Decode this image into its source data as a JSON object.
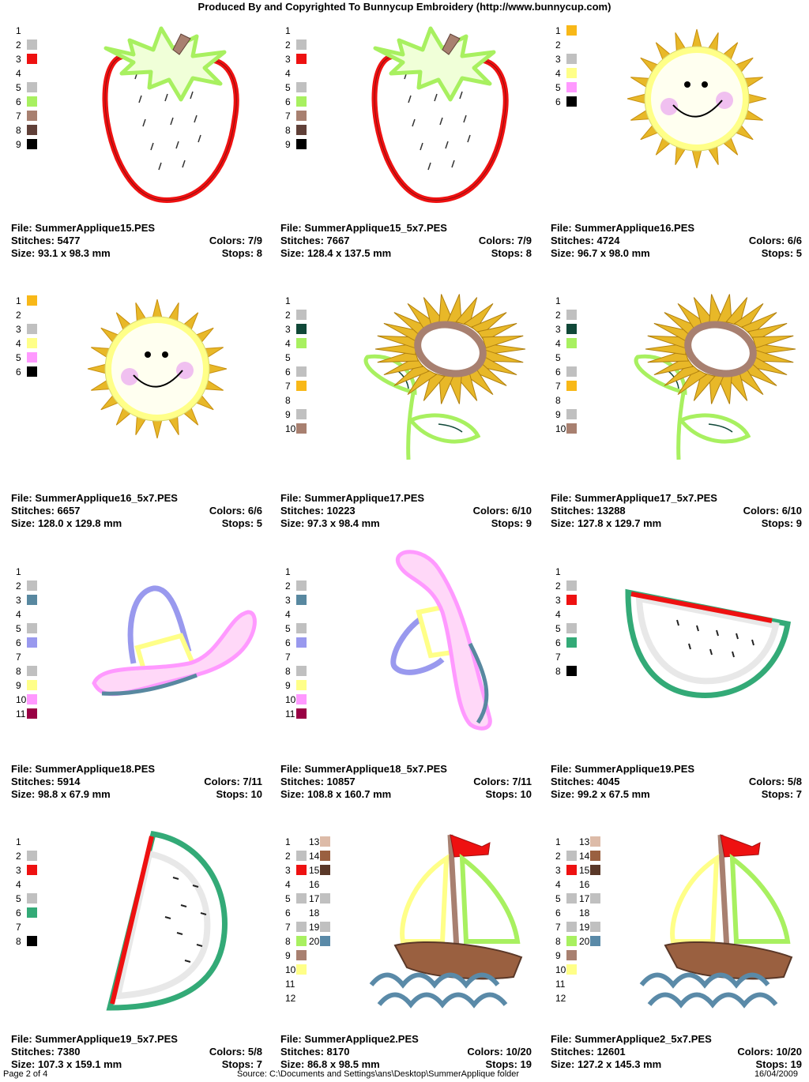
{
  "header": {
    "title": "Produced By and Copyrighted To Bunnycup Embroidery (http://www.bunnycup.com)"
  },
  "footer": {
    "page": "Page 2 of 4",
    "source": "Source:  C:\\Documents and Settings\\ans\\Desktop\\SummerApplique folder",
    "date": "16/04/2009"
  },
  "colors": {
    "gray": "#c0c0c0",
    "red": "#ee1111",
    "lightgreen": "#a8f060",
    "tan": "#a88070",
    "darkbrown": "#604038",
    "black": "#000000",
    "orange": "#f8b818",
    "yellow": "#ffff88",
    "pink": "#ff99ff",
    "darkteal": "#104838",
    "gold": "#e8b828",
    "steel": "#5888a0",
    "lavender": "#9999ee",
    "maroon": "#990044",
    "green": "#33aa77",
    "peach": "#ddbba8",
    "brown": "#9a6040",
    "coffee": "#5a3828",
    "blue": "#5a8aa8",
    "white": "#ffffff"
  },
  "designs": [
    {
      "file_label": "File: SummerApplique15.PES",
      "stitches_label": "Stitches: 5477",
      "colors_label": "Colors: 7/9",
      "size_label": "Size: 93.1 x 98.3 mm",
      "stops_label": "Stops: 8",
      "legend": [
        [
          "1",
          ""
        ],
        [
          "2",
          "#c0c0c0"
        ],
        [
          "3",
          "#ee1111"
        ],
        [
          "4",
          ""
        ],
        [
          "5",
          "#c0c0c0"
        ],
        [
          "6",
          "#a8f060"
        ],
        [
          "7",
          "#a88070"
        ],
        [
          "8",
          "#604038"
        ],
        [
          "9",
          "#000000"
        ]
      ],
      "art": "strawberry"
    },
    {
      "file_label": "File: SummerApplique15_5x7.PES",
      "stitches_label": "Stitches: 7667",
      "colors_label": "Colors: 7/9",
      "size_label": "Size: 128.4 x 137.5 mm",
      "stops_label": "Stops: 8",
      "legend": [
        [
          "1",
          ""
        ],
        [
          "2",
          "#c0c0c0"
        ],
        [
          "3",
          "#ee1111"
        ],
        [
          "4",
          ""
        ],
        [
          "5",
          "#c0c0c0"
        ],
        [
          "6",
          "#a8f060"
        ],
        [
          "7",
          "#a88070"
        ],
        [
          "8",
          "#604038"
        ],
        [
          "9",
          "#000000"
        ]
      ],
      "art": "strawberry"
    },
    {
      "file_label": "File: SummerApplique16.PES",
      "stitches_label": "Stitches: 4724",
      "colors_label": "Colors: 6/6",
      "size_label": "Size: 96.7 x 98.0 mm",
      "stops_label": "Stops: 5",
      "legend": [
        [
          "1",
          "#f8b818"
        ],
        [
          "2",
          ""
        ],
        [
          "3",
          "#c0c0c0"
        ],
        [
          "4",
          "#ffff88"
        ],
        [
          "5",
          "#ff99ff"
        ],
        [
          "6",
          "#000000"
        ]
      ],
      "art": "sun"
    },
    {
      "file_label": "File: SummerApplique16_5x7.PES",
      "stitches_label": "Stitches: 6657",
      "colors_label": "Colors: 6/6",
      "size_label": "Size: 128.0 x 129.8 mm",
      "stops_label": "Stops: 5",
      "legend": [
        [
          "1",
          "#f8b818"
        ],
        [
          "2",
          ""
        ],
        [
          "3",
          "#c0c0c0"
        ],
        [
          "4",
          "#ffff88"
        ],
        [
          "5",
          "#ff99ff"
        ],
        [
          "6",
          "#000000"
        ]
      ],
      "art": "sun"
    },
    {
      "file_label": "File: SummerApplique17.PES",
      "stitches_label": "Stitches: 10223",
      "colors_label": "Colors: 6/10",
      "size_label": "Size: 97.3 x 98.4 mm",
      "stops_label": "Stops: 9",
      "legend": [
        [
          "1",
          ""
        ],
        [
          "2",
          "#c0c0c0"
        ],
        [
          "3",
          "#104838"
        ],
        [
          "4",
          "#a8f060"
        ],
        [
          "5",
          ""
        ],
        [
          "6",
          "#c0c0c0"
        ],
        [
          "7",
          "#f8b818"
        ],
        [
          "8",
          ""
        ],
        [
          "9",
          "#c0c0c0"
        ],
        [
          "10",
          "#a88070"
        ]
      ],
      "art": "sunflower"
    },
    {
      "file_label": "File: SummerApplique17_5x7.PES",
      "stitches_label": "Stitches: 13288",
      "colors_label": "Colors: 6/10",
      "size_label": "Size: 127.8 x 129.7 mm",
      "stops_label": "Stops: 9",
      "legend": [
        [
          "1",
          ""
        ],
        [
          "2",
          "#c0c0c0"
        ],
        [
          "3",
          "#104838"
        ],
        [
          "4",
          "#a8f060"
        ],
        [
          "5",
          ""
        ],
        [
          "6",
          "#c0c0c0"
        ],
        [
          "7",
          "#f8b818"
        ],
        [
          "8",
          ""
        ],
        [
          "9",
          "#c0c0c0"
        ],
        [
          "10",
          "#a88070"
        ]
      ],
      "art": "sunflower"
    },
    {
      "file_label": "File: SummerApplique18.PES",
      "stitches_label": "Stitches: 5914",
      "colors_label": "Colors: 7/11",
      "size_label": "Size: 98.8 x 67.9 mm",
      "stops_label": "Stops: 10",
      "legend": [
        [
          "1",
          ""
        ],
        [
          "2",
          "#c0c0c0"
        ],
        [
          "3",
          "#5888a0"
        ],
        [
          "4",
          ""
        ],
        [
          "5",
          "#c0c0c0"
        ],
        [
          "6",
          "#9999ee"
        ],
        [
          "7",
          ""
        ],
        [
          "8",
          "#c0c0c0"
        ],
        [
          "9",
          "#ffff88"
        ],
        [
          "10",
          "#ff99ff"
        ],
        [
          "11",
          "#990044"
        ]
      ],
      "art": "hat"
    },
    {
      "file_label": "File: SummerApplique18_5x7.PES",
      "stitches_label": "Stitches: 10857",
      "colors_label": "Colors: 7/11",
      "size_label": "Size: 108.8 x 160.7 mm",
      "stops_label": "Stops: 10",
      "legend": [
        [
          "1",
          ""
        ],
        [
          "2",
          "#c0c0c0"
        ],
        [
          "3",
          "#5888a0"
        ],
        [
          "4",
          ""
        ],
        [
          "5",
          "#c0c0c0"
        ],
        [
          "6",
          "#9999ee"
        ],
        [
          "7",
          ""
        ],
        [
          "8",
          "#c0c0c0"
        ],
        [
          "9",
          "#ffff88"
        ],
        [
          "10",
          "#ff99ff"
        ],
        [
          "11",
          "#990044"
        ]
      ],
      "art": "hat-rotated"
    },
    {
      "file_label": "File: SummerApplique19.PES",
      "stitches_label": "Stitches: 4045",
      "colors_label": "Colors: 5/8",
      "size_label": "Size: 99.2 x 67.5 mm",
      "stops_label": "Stops: 7",
      "legend": [
        [
          "1",
          ""
        ],
        [
          "2",
          "#c0c0c0"
        ],
        [
          "3",
          "#ee1111"
        ],
        [
          "4",
          ""
        ],
        [
          "5",
          "#c0c0c0"
        ],
        [
          "6",
          "#33aa77"
        ],
        [
          "7",
          ""
        ],
        [
          "8",
          "#000000"
        ]
      ],
      "art": "watermelon"
    },
    {
      "file_label": "File: SummerApplique19_5x7.PES",
      "stitches_label": "Stitches: 7380",
      "colors_label": "Colors: 5/8",
      "size_label": "Size: 107.3 x 159.1 mm",
      "stops_label": "Stops: 7",
      "legend": [
        [
          "1",
          ""
        ],
        [
          "2",
          "#c0c0c0"
        ],
        [
          "3",
          "#ee1111"
        ],
        [
          "4",
          ""
        ],
        [
          "5",
          "#c0c0c0"
        ],
        [
          "6",
          "#33aa77"
        ],
        [
          "7",
          ""
        ],
        [
          "8",
          "#000000"
        ]
      ],
      "art": "watermelon-rotated"
    },
    {
      "file_label": "File: SummerApplique2.PES",
      "stitches_label": "Stitches: 8170",
      "colors_label": "Colors: 10/20",
      "size_label": "Size: 86.8 x 98.5 mm",
      "stops_label": "Stops: 19",
      "legend": [
        [
          "1",
          ""
        ],
        [
          "2",
          "#c0c0c0"
        ],
        [
          "3",
          "#ee1111"
        ],
        [
          "4",
          ""
        ],
        [
          "5",
          "#c0c0c0"
        ],
        [
          "6",
          ""
        ],
        [
          "7",
          "#c0c0c0"
        ],
        [
          "8",
          "#a8f060"
        ],
        [
          "9",
          "#a88070"
        ],
        [
          "10",
          "#ffff88"
        ],
        [
          "11",
          ""
        ],
        [
          "12",
          ""
        ]
      ],
      "legend2": [
        [
          "13",
          "#ddbba8"
        ],
        [
          "14",
          "#9a6040"
        ],
        [
          "15",
          "#5a3828"
        ],
        [
          "16",
          ""
        ],
        [
          "17",
          "#c0c0c0"
        ],
        [
          "18",
          ""
        ],
        [
          "19",
          "#c0c0c0"
        ],
        [
          "20",
          "#5a8aa8"
        ]
      ],
      "art": "sailboat"
    },
    {
      "file_label": "File: SummerApplique2_5x7.PES",
      "stitches_label": "Stitches: 12601",
      "colors_label": "Colors: 10/20",
      "size_label": "Size: 127.2 x 145.3 mm",
      "stops_label": "Stops: 19",
      "legend": [
        [
          "1",
          ""
        ],
        [
          "2",
          "#c0c0c0"
        ],
        [
          "3",
          "#ee1111"
        ],
        [
          "4",
          ""
        ],
        [
          "5",
          "#c0c0c0"
        ],
        [
          "6",
          ""
        ],
        [
          "7",
          "#c0c0c0"
        ],
        [
          "8",
          "#a8f060"
        ],
        [
          "9",
          "#a88070"
        ],
        [
          "10",
          "#ffff88"
        ],
        [
          "11",
          ""
        ],
        [
          "12",
          ""
        ]
      ],
      "legend2": [
        [
          "13",
          "#ddbba8"
        ],
        [
          "14",
          "#9a6040"
        ],
        [
          "15",
          "#5a3828"
        ],
        [
          "16",
          ""
        ],
        [
          "17",
          "#c0c0c0"
        ],
        [
          "18",
          ""
        ],
        [
          "19",
          "#c0c0c0"
        ],
        [
          "20",
          "#5a8aa8"
        ]
      ],
      "art": "sailboat"
    }
  ]
}
